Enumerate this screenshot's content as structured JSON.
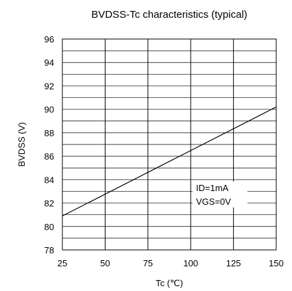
{
  "chart_data": {
    "type": "line",
    "title": "BVDSS-Tc characteristics (typical)",
    "xlabel": "Tc (℃)",
    "ylabel": "BVDSS (V)",
    "xlim": [
      25,
      150
    ],
    "ylim": [
      78,
      96
    ],
    "x_ticks": [
      "25",
      "50",
      "75",
      "100",
      "125",
      "150"
    ],
    "y_ticks": [
      "78",
      "80",
      "82",
      "84",
      "86",
      "88",
      "90",
      "92",
      "94",
      "96"
    ],
    "grid": true,
    "series": [
      {
        "x": [
          25,
          150
        ],
        "y": [
          80.9,
          90.2
        ]
      }
    ],
    "annotations": [
      "ID=1mA",
      "VGS=0V"
    ]
  }
}
